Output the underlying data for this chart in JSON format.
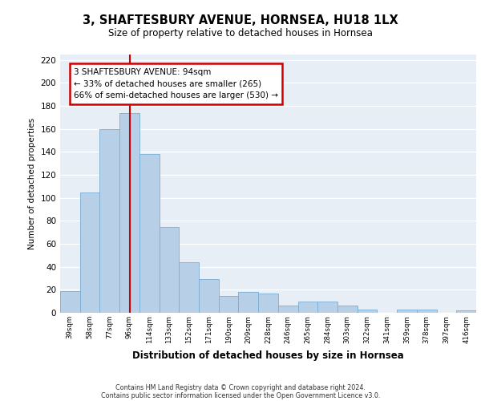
{
  "title": "3, SHAFTESBURY AVENUE, HORNSEA, HU18 1LX",
  "subtitle": "Size of property relative to detached houses in Hornsea",
  "xlabel": "Distribution of detached houses by size in Hornsea",
  "ylabel": "Number of detached properties",
  "categories": [
    "39sqm",
    "58sqm",
    "77sqm",
    "96sqm",
    "114sqm",
    "133sqm",
    "152sqm",
    "171sqm",
    "190sqm",
    "209sqm",
    "228sqm",
    "246sqm",
    "265sqm",
    "284sqm",
    "303sqm",
    "322sqm",
    "341sqm",
    "359sqm",
    "378sqm",
    "397sqm",
    "416sqm"
  ],
  "values": [
    19,
    105,
    160,
    174,
    138,
    75,
    44,
    29,
    15,
    18,
    17,
    6,
    10,
    10,
    6,
    3,
    0,
    3,
    3,
    0,
    2
  ],
  "bar_color": "#b8cfe8",
  "bar_edge_color": "#7aadd4",
  "property_line_x": 3.0,
  "property_line_color": "#cc0000",
  "annotation_line1": "3 SHAFTESBURY AVENUE: 94sqm",
  "annotation_line2": "← 33% of detached houses are smaller (265)",
  "annotation_line3": "66% of semi-detached houses are larger (530) →",
  "annotation_box_color": "#cc0000",
  "ylim": [
    0,
    225
  ],
  "yticks": [
    0,
    20,
    40,
    60,
    80,
    100,
    120,
    140,
    160,
    180,
    200,
    220
  ],
  "background_color": "#e8eef6",
  "footer_line1": "Contains HM Land Registry data © Crown copyright and database right 2024.",
  "footer_line2": "Contains public sector information licensed under the Open Government Licence v3.0."
}
